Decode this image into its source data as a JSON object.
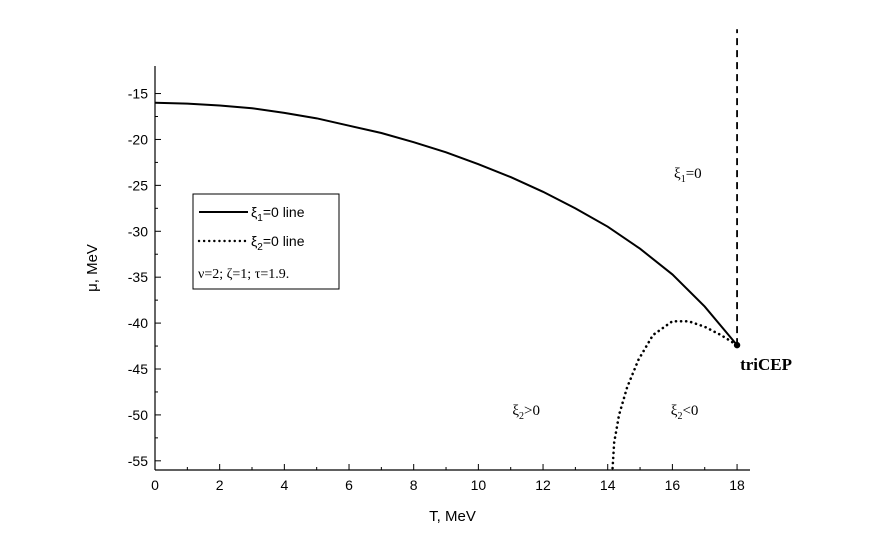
{
  "chart_data": {
    "type": "line",
    "xlabel": "T, MeV",
    "ylabel": "μ, MeV",
    "xlim": [
      0,
      18.4
    ],
    "ylim": [
      -56,
      -12
    ],
    "x_ticks": [
      0,
      2,
      4,
      6,
      8,
      10,
      12,
      14,
      16,
      18
    ],
    "y_ticks": [
      -15,
      -20,
      -25,
      -30,
      -35,
      -40,
      -45,
      -50,
      -55
    ],
    "grid": false,
    "legend_position": "left",
    "legend": {
      "entries": [
        {
          "sym": "ξ",
          "sub": "1",
          "rest": "=0 line",
          "style": "solid"
        },
        {
          "sym": "ξ",
          "sub": "2",
          "rest": "=0 line",
          "style": "dotted"
        }
      ],
      "note": "ν=2; ζ=1; τ=1.9."
    },
    "series": [
      {
        "style": "solid",
        "points": [
          [
            0,
            -16
          ],
          [
            1,
            -16.1
          ],
          [
            2,
            -16.3
          ],
          [
            3,
            -16.6
          ],
          [
            4,
            -17.1
          ],
          [
            5,
            -17.7
          ],
          [
            6,
            -18.5
          ],
          [
            7,
            -19.3
          ],
          [
            8,
            -20.3
          ],
          [
            9,
            -21.4
          ],
          [
            10,
            -22.7
          ],
          [
            11,
            -24.1
          ],
          [
            12,
            -25.7
          ],
          [
            13,
            -27.5
          ],
          [
            14,
            -29.5
          ],
          [
            15,
            -31.9
          ],
          [
            16,
            -34.7
          ],
          [
            17,
            -38.2
          ],
          [
            18,
            -42.4
          ]
        ]
      },
      {
        "style": "dotted",
        "points": [
          [
            14.15,
            -55.8
          ],
          [
            14.2,
            -53
          ],
          [
            14.35,
            -50
          ],
          [
            14.6,
            -47
          ],
          [
            14.95,
            -44
          ],
          [
            15.4,
            -41.3
          ],
          [
            16.0,
            -39.8
          ],
          [
            16.5,
            -39.8
          ],
          [
            17.0,
            -40.4
          ],
          [
            17.5,
            -41.3
          ],
          [
            18,
            -42.4
          ]
        ]
      },
      {
        "style": "dashed",
        "points": [
          [
            18,
            -42.4
          ],
          [
            18,
            -8
          ]
        ]
      }
    ],
    "point": {
      "x": 18,
      "y": -42.4,
      "label": "triCEP"
    },
    "annotations": [
      {
        "sym": "ξ",
        "sub": "1",
        "rest": "=0",
        "x": 16.05,
        "y": -24.2
      },
      {
        "sym": "ξ",
        "sub": "2",
        "rest": ">0",
        "x": 11.05,
        "y": -50.0
      },
      {
        "sym": "ξ",
        "sub": "2",
        "rest": "<0",
        "x": 15.95,
        "y": -50.0
      }
    ]
  }
}
